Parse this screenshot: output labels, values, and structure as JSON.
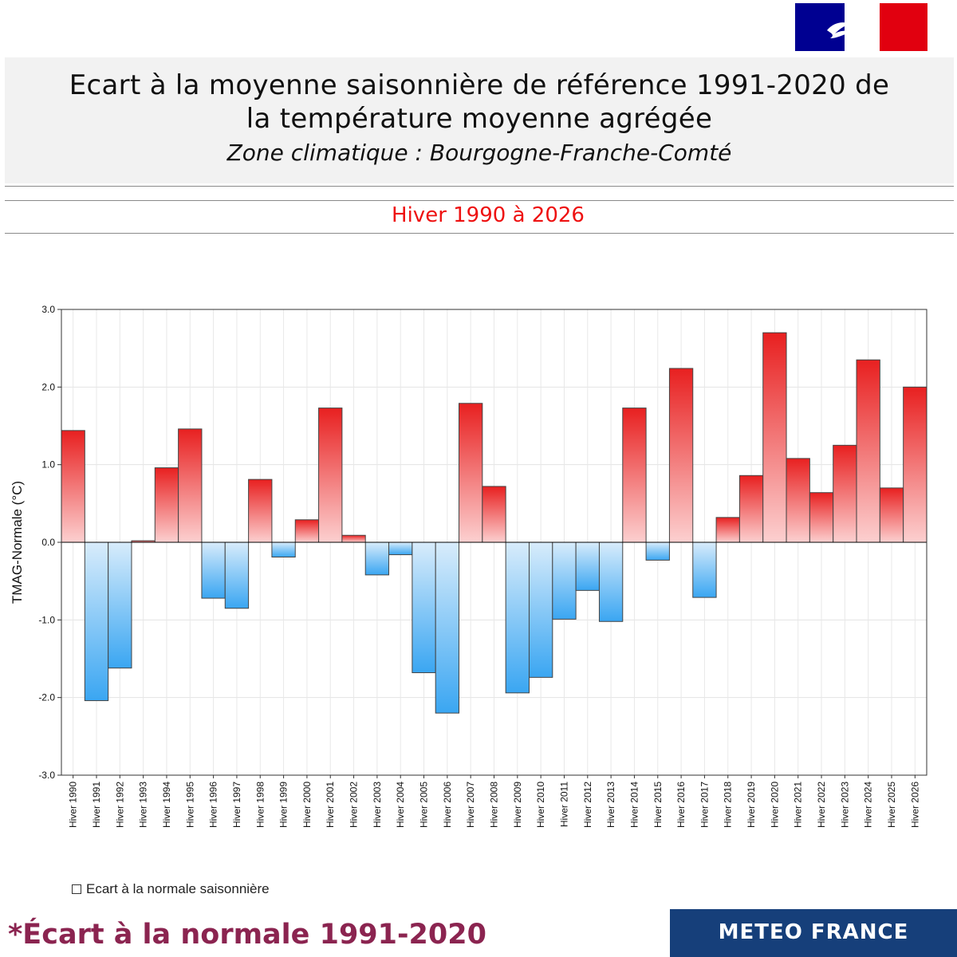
{
  "header": {
    "title_line1": "Ecart à la moyenne saisonnière  de référence 1991-2020  de",
    "title_line2": "la température moyenne  agrégée",
    "subtitle": "Zone climatique : Bourgogne-Franche-Comté",
    "season": "Hiver 1990 à 2026"
  },
  "legend": {
    "label": "Ecart à la normale saisonnière"
  },
  "footer": {
    "note": "*Écart à la normale 1991-2020",
    "brand": "METEO FRANCE"
  },
  "colors": {
    "positive_strong": "#e82020",
    "positive_light": "#fcd0d0",
    "negative_strong": "#3aa6f2",
    "negative_light": "#d8ecfb",
    "season_text": "#ee1111",
    "footnote_text": "#8b2450",
    "brand_bg": "#163f7a",
    "flag_blue": "#000091",
    "flag_red": "#e1000f"
  },
  "chart_data": {
    "type": "bar",
    "title": "Hiver 1990 à 2026",
    "xlabel": "",
    "ylabel": "TMAG-Normale (°C)",
    "ylim": [
      -3.0,
      3.0
    ],
    "yticks": [
      "3.0",
      "2.0",
      "1.0",
      "0.0",
      "-1.0",
      "-2.0",
      "-3.0"
    ],
    "grid": true,
    "legend_position": "bottom-left",
    "categories": [
      "Hiver 1990",
      "Hiver 1991",
      "Hiver 1992",
      "Hiver 1993",
      "Hiver 1994",
      "Hiver 1995",
      "Hiver 1996",
      "Hiver 1997",
      "Hiver 1998",
      "Hiver 1999",
      "Hiver 2000",
      "Hiver 2001",
      "Hiver 2002",
      "Hiver 2003",
      "Hiver 2004",
      "Hiver 2005",
      "Hiver 2006",
      "Hiver 2007",
      "Hiver 2008",
      "Hiver 2009",
      "Hiver 2010",
      "Hiver 2011",
      "Hiver 2012",
      "Hiver 2013",
      "Hiver 2014",
      "Hiver 2015",
      "Hiver 2016",
      "Hiver 2017",
      "Hiver 2018",
      "Hiver 2019",
      "Hiver 2020",
      "Hiver 2021",
      "Hiver 2022",
      "Hiver 2023",
      "Hiver 2024",
      "Hiver 2025",
      "Hiver 2026"
    ],
    "values": [
      1.44,
      -2.04,
      -1.62,
      0.02,
      0.96,
      1.46,
      -0.72,
      -0.85,
      0.81,
      -0.19,
      0.29,
      1.73,
      0.09,
      -0.42,
      -0.16,
      -1.68,
      -2.2,
      1.79,
      0.72,
      -1.94,
      -1.74,
      -0.99,
      -0.62,
      -1.02,
      1.73,
      -0.23,
      2.24,
      -0.71,
      0.32,
      0.86,
      2.7,
      1.08,
      0.64,
      1.25,
      2.35,
      0.7,
      2.0
    ]
  }
}
